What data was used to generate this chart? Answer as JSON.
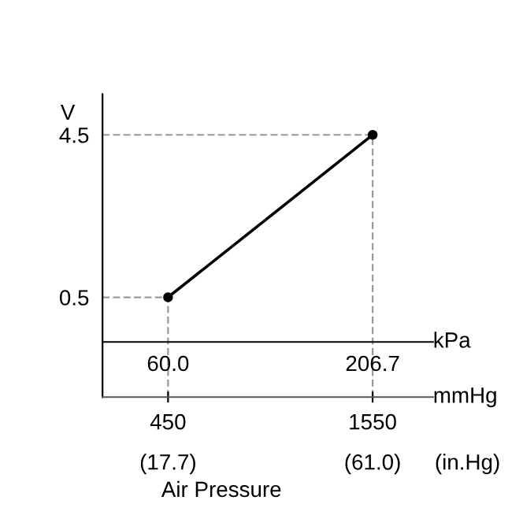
{
  "chart_data": {
    "type": "line",
    "x": [
      60.0,
      206.7
    ],
    "series": [
      {
        "color": "#000000",
        "values": [
          0.5,
          4.5
        ]
      }
    ],
    "marker": "circle",
    "line_style": "solid",
    "xlim": [
      13,
      250
    ],
    "xticks": [
      {
        "value": 60.0,
        "label": "60.0"
      },
      206.7
    ],
    "ylim": [
      -0.6,
      5.5
    ],
    "yticks": [
      0.5,
      4.5
    ],
    "x2lim": [
      97.5,
      1875
    ],
    "x2ticks": [
      450,
      1550
    ],
    "xlabel": "kPa",
    "x2label": "mmHg",
    "ylabel": "V",
    "annotations": [
      "(17.7)",
      "(61.0)",
      "(in.Hg)",
      "Air Pressure"
    ],
    "ref_lines": [
      {
        "axis": "y",
        "value": 0.5,
        "color": "#999999",
        "line_style": "dashed"
      },
      {
        "axis": "y",
        "value": 4.5,
        "color": "#999999",
        "line_style": "dashed"
      },
      {
        "axis": "x",
        "value": 60.0,
        "color": "#999999",
        "line_style": "dashed"
      },
      {
        "axis": "x",
        "value": 206.7,
        "color": "#999999",
        "line_style": "dashed"
      }
    ],
    "grid": false
  }
}
